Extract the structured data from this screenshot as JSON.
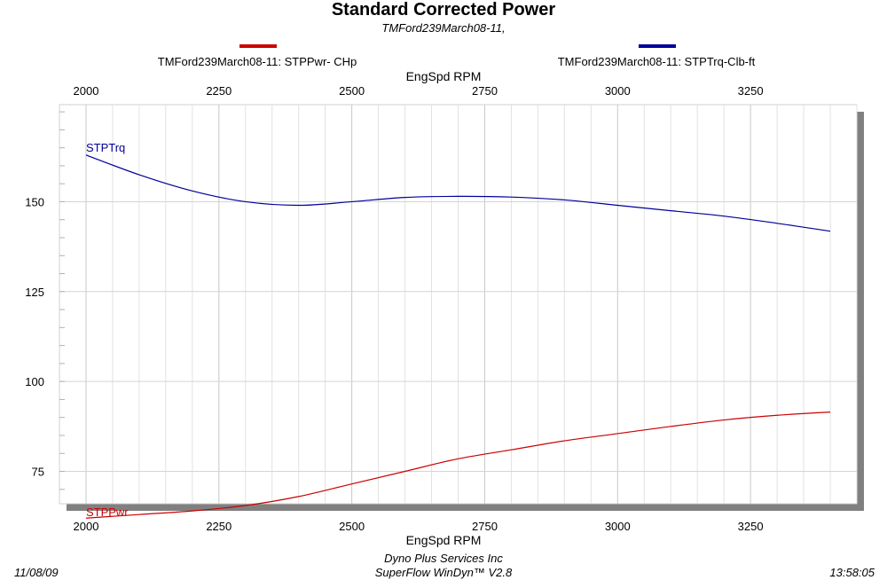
{
  "header": {
    "title": "Standard Corrected Power",
    "subtitle": "TMFord239March08-11,"
  },
  "footer": {
    "date": "11/08/09",
    "time": "13:58:05",
    "company": "Dyno Plus Services Inc",
    "software": "SuperFlow WinDyn™ V2.8"
  },
  "chart_data": {
    "type": "line",
    "title": "Standard Corrected Power",
    "subtitle": "TMFord239March08-11,",
    "xlabel": "EngSpd  RPM",
    "xlim": [
      1950,
      3450
    ],
    "ylim": [
      66,
      177
    ],
    "x_ticks": [
      2000,
      2250,
      2500,
      2750,
      3000,
      3250
    ],
    "x_tick_labels": [
      "2000",
      "2250",
      "2500",
      "2750",
      "3000",
      "3250"
    ],
    "y_ticks": [
      75,
      100,
      125,
      150
    ],
    "y_tick_labels": [
      "75",
      "100",
      "125",
      "150"
    ],
    "grid": true,
    "legend_position": "top",
    "series": [
      {
        "name": "TMFord239March08-11: STPPwr- CHp",
        "label": "STPPwr",
        "color": "#cc0000",
        "x": [
          2000,
          2100,
          2200,
          2300,
          2400,
          2500,
          2600,
          2700,
          2800,
          2900,
          3000,
          3100,
          3200,
          3300,
          3400
        ],
        "y": [
          62,
          63,
          64,
          65.5,
          68,
          71.5,
          75,
          78.5,
          81,
          83.5,
          85.5,
          87.5,
          89.3,
          90.6,
          91.5
        ]
      },
      {
        "name": "TMFord239March08-11: STPTrq-Clb-ft",
        "label": "STPTrq",
        "color": "#000099",
        "x": [
          2000,
          2100,
          2200,
          2300,
          2400,
          2500,
          2600,
          2700,
          2800,
          2900,
          3000,
          3100,
          3200,
          3300,
          3400
        ],
        "y": [
          163,
          157.5,
          153,
          150,
          149,
          150,
          151.2,
          151.5,
          151.3,
          150.5,
          149,
          147.5,
          146,
          144,
          141.8
        ]
      }
    ]
  }
}
